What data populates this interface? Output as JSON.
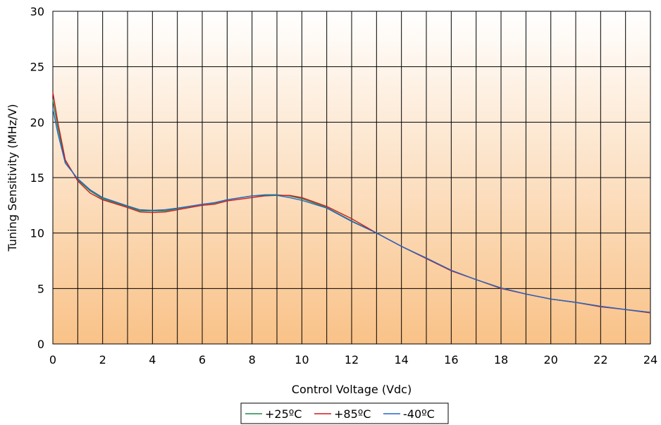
{
  "chart_data": {
    "type": "line",
    "xlabel": "Control Voltage (Vdc)",
    "ylabel": "Tuning Sensitivity (MHz/V)",
    "xlim": [
      0,
      24
    ],
    "ylim": [
      0,
      30
    ],
    "x_ticks": [
      0,
      2,
      4,
      6,
      8,
      10,
      12,
      14,
      16,
      18,
      20,
      22,
      24
    ],
    "y_ticks": [
      0,
      5,
      10,
      15,
      20,
      25,
      30
    ],
    "x_grid_step": 1,
    "y_grid_step": 5,
    "grid": true,
    "legend_position": "bottom-center",
    "background": "vertical gradient from white (top) to light orange (bottom)",
    "colors": {
      "gradient_top": "#ffffff",
      "gradient_bottom": "#f9c288",
      "grid": "#000000"
    },
    "series": [
      {
        "name": "+25ºC",
        "color": "#1f8a4c",
        "x": [
          0,
          0.2,
          0.5,
          1,
          1.5,
          2,
          3,
          3.5,
          4,
          4.5,
          5,
          6,
          6.5,
          7,
          8,
          8.5,
          9,
          9.5,
          10,
          11,
          12,
          13,
          14,
          15,
          16,
          17,
          18,
          19,
          20,
          21,
          22,
          23,
          24
        ],
        "y": [
          22,
          19.5,
          16.5,
          14.8,
          13.8,
          13.1,
          12.4,
          12.0,
          12.0,
          12.0,
          12.2,
          12.6,
          12.7,
          13.0,
          13.35,
          13.45,
          13.45,
          13.35,
          13.1,
          12.3,
          11.1,
          10.0,
          8.8,
          7.7,
          6.6,
          5.8,
          5.05,
          4.5,
          4.05,
          3.75,
          3.4,
          3.1,
          2.85
        ]
      },
      {
        "name": "+85ºC",
        "color": "#d11a1a",
        "x": [
          0,
          0.2,
          0.5,
          1,
          1.5,
          2,
          3,
          3.5,
          4,
          4.5,
          5,
          6,
          6.5,
          7,
          8,
          8.5,
          9,
          9.5,
          10,
          11,
          12,
          13,
          14,
          15,
          16,
          17,
          18,
          19,
          20,
          21,
          22,
          23,
          24
        ],
        "y": [
          22.7,
          20.0,
          16.6,
          14.7,
          13.6,
          13.0,
          12.3,
          11.9,
          11.85,
          11.9,
          12.1,
          12.5,
          12.6,
          12.9,
          13.2,
          13.35,
          13.4,
          13.4,
          13.2,
          12.4,
          11.3,
          10.0,
          8.8,
          7.7,
          6.6,
          5.8,
          5.0,
          4.5,
          4.05,
          3.75,
          3.35,
          3.1,
          2.8
        ]
      },
      {
        "name": "-40ºC",
        "color": "#2566c8",
        "x": [
          0,
          0.2,
          0.5,
          1,
          1.5,
          2,
          3,
          3.5,
          4,
          4.5,
          5,
          6,
          6.5,
          7,
          8,
          8.5,
          9,
          9.5,
          10,
          11,
          12,
          13,
          14,
          15,
          16,
          17,
          18,
          19,
          20,
          21,
          22,
          23,
          24
        ],
        "y": [
          21.2,
          19.0,
          16.3,
          14.9,
          13.9,
          13.2,
          12.45,
          12.1,
          12.05,
          12.1,
          12.25,
          12.6,
          12.75,
          13.0,
          13.35,
          13.4,
          13.4,
          13.2,
          12.95,
          12.25,
          11.05,
          10.0,
          8.8,
          7.75,
          6.65,
          5.8,
          5.05,
          4.5,
          4.05,
          3.75,
          3.4,
          3.1,
          2.85
        ]
      }
    ]
  }
}
